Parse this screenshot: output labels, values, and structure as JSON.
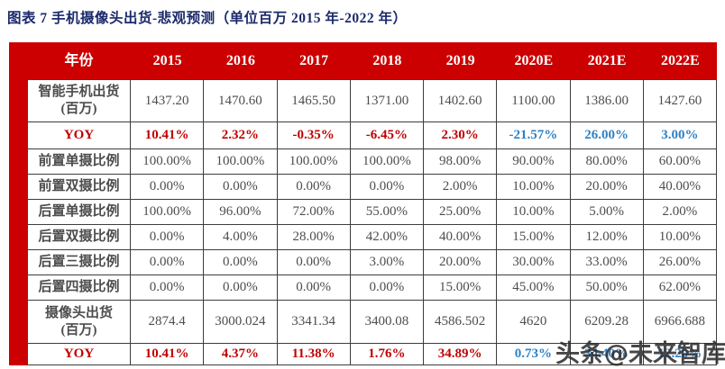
{
  "title": "图表 7 手机摄像头出货-悲观预测（单位百万 2015 年-2022 年）",
  "watermark": "头条@未来智库",
  "colors": {
    "header_bg": "#CC0000",
    "left_bar": "#CC0000",
    "title_navy": "#1B2A6B",
    "value_red": "#C00000",
    "value_blue": "#2E81C4",
    "body_text": "#4D4D4D",
    "border": "#3D3D3D"
  },
  "chart_data": {
    "type": "table",
    "columns": [
      "年份",
      "2015",
      "2016",
      "2017",
      "2018",
      "2019",
      "2020E",
      "2021E",
      "2022E"
    ],
    "rows": [
      {
        "label": "智能手机出货\n(百万)",
        "style": "normal",
        "values": [
          "1437.20",
          "1470.60",
          "1465.50",
          "1371.00",
          "1402.60",
          "1100.00",
          "1386.00",
          "1427.60"
        ]
      },
      {
        "label": "YOY",
        "style": "yoy",
        "values": [
          "10.41%",
          "2.32%",
          "-0.35%",
          "-6.45%",
          "2.30%",
          "-21.57%",
          "26.00%",
          "3.00%"
        ],
        "value_colors": [
          "red",
          "red",
          "red",
          "red",
          "red",
          "blue",
          "blue",
          "blue"
        ]
      },
      {
        "label": "前置单摄比例",
        "style": "normal",
        "values": [
          "100.00%",
          "100.00%",
          "100.00%",
          "100.00%",
          "98.00%",
          "90.00%",
          "80.00%",
          "60.00%"
        ]
      },
      {
        "label": "前置双摄比例",
        "style": "normal",
        "values": [
          "0.00%",
          "0.00%",
          "0.00%",
          "0.00%",
          "2.00%",
          "10.00%",
          "20.00%",
          "40.00%"
        ]
      },
      {
        "label": "后置单摄比例",
        "style": "normal",
        "values": [
          "100.00%",
          "96.00%",
          "72.00%",
          "55.00%",
          "25.00%",
          "10.00%",
          "5.00%",
          "2.00%"
        ]
      },
      {
        "label": "后置双摄比例",
        "style": "normal",
        "values": [
          "0.00%",
          "4.00%",
          "28.00%",
          "42.00%",
          "40.00%",
          "15.00%",
          "12.00%",
          "10.00%"
        ]
      },
      {
        "label": "后置三摄比例",
        "style": "normal",
        "values": [
          "0.00%",
          "0.00%",
          "0.00%",
          "3.00%",
          "20.00%",
          "30.00%",
          "33.00%",
          "26.00%"
        ]
      },
      {
        "label": "后置四摄比例",
        "style": "normal",
        "values": [
          "0.00%",
          "0.00%",
          "0.00%",
          "0.00%",
          "15.00%",
          "45.00%",
          "50.00%",
          "62.00%"
        ]
      },
      {
        "label": "摄像头出货\n(百万)",
        "style": "normal",
        "values": [
          "2874.4",
          "3000.024",
          "3341.34",
          "3400.08",
          "4586.502",
          "4620",
          "6209.28",
          "6966.688"
        ]
      },
      {
        "label": "YOY",
        "style": "yoy",
        "values": [
          "10.41%",
          "4.37%",
          "11.38%",
          "1.76%",
          "34.89%",
          "0.73%",
          "34.40%",
          "12.20%"
        ],
        "value_colors": [
          "red",
          "red",
          "red",
          "red",
          "red",
          "blue",
          "blue",
          "blue"
        ]
      }
    ]
  }
}
